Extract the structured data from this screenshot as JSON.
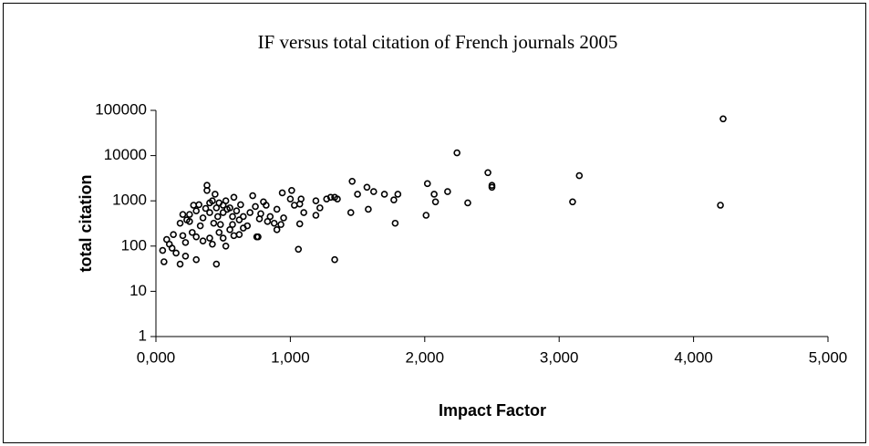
{
  "chart_data": {
    "type": "scatter",
    "title": "IF versus total citation of French journals 2005",
    "x_label": "Impact Factor",
    "y_label": "total citation",
    "y_log": true,
    "grid": false,
    "color": "#000000",
    "xlim": [
      0,
      5
    ],
    "xticks": [
      {
        "value": 0,
        "label": "0,000"
      },
      {
        "value": 1,
        "label": "1,000"
      },
      {
        "value": 2,
        "label": "2,000"
      },
      {
        "value": 3,
        "label": "3,000"
      },
      {
        "value": 4,
        "label": "4,000"
      },
      {
        "value": 5,
        "label": "5,000"
      }
    ],
    "ylim": [
      1,
      100000
    ],
    "yticks": [
      1,
      10,
      100,
      1000,
      10000,
      100000
    ],
    "x": [
      4.22,
      2.24,
      4.2,
      3.1,
      3.15,
      2.47,
      2.5,
      2.5,
      2.32,
      2.17,
      2.07,
      2.08,
      2.02,
      2.01,
      1.8,
      1.77,
      1.78,
      1.7,
      1.62,
      1.57,
      1.58,
      1.5,
      1.46,
      1.45,
      1.35,
      1.33,
      1.3,
      1.27,
      1.33,
      1.22,
      1.19,
      1.19,
      1.1,
      1.08,
      1.07,
      1.06,
      1.07,
      1.03,
      1.01,
      1.0,
      0.95,
      0.94,
      0.93,
      0.9,
      0.9,
      0.88,
      0.85,
      0.83,
      0.82,
      0.8,
      0.78,
      0.77,
      0.76,
      0.75,
      0.74,
      0.72,
      0.7,
      0.68,
      0.05,
      0.06,
      0.08,
      0.1,
      0.12,
      0.13,
      0.15,
      0.18,
      0.18,
      0.2,
      0.2,
      0.22,
      0.22,
      0.23,
      0.25,
      0.25,
      0.27,
      0.28,
      0.3,
      0.3,
      0.32,
      0.33,
      0.35,
      0.37,
      0.38,
      0.38,
      0.4,
      0.4,
      0.4,
      0.42,
      0.42,
      0.43,
      0.44,
      0.45,
      0.45,
      0.46,
      0.47,
      0.48,
      0.5,
      0.5,
      0.5,
      0.52,
      0.52,
      0.53,
      0.55,
      0.55,
      0.57,
      0.58,
      0.58,
      0.6,
      0.62,
      0.63,
      0.65,
      0.65,
      0.3,
      0.35,
      0.47,
      0.57,
      0.62
    ],
    "y": [
      65000,
      11500,
      800,
      950,
      3600,
      4200,
      2200,
      2000,
      900,
      1600,
      1400,
      950,
      2400,
      480,
      1400,
      1050,
      320,
      1400,
      1600,
      2000,
      650,
      1400,
      2700,
      550,
      1100,
      1200,
      1200,
      1100,
      50,
      700,
      1000,
      480,
      550,
      1100,
      850,
      85,
      310,
      800,
      1700,
      1100,
      420,
      1500,
      300,
      650,
      230,
      320,
      450,
      350,
      800,
      950,
      520,
      400,
      160,
      160,
      750,
      1300,
      550,
      280,
      80,
      45,
      140,
      110,
      90,
      180,
      70,
      40,
      320,
      170,
      500,
      60,
      120,
      380,
      350,
      500,
      200,
      800,
      160,
      50,
      820,
      280,
      420,
      680,
      1700,
      2200,
      900,
      550,
      150,
      110,
      1000,
      320,
      1400,
      40,
      700,
      450,
      200,
      300,
      800,
      550,
      150,
      1000,
      100,
      650,
      700,
      230,
      450,
      1200,
      170,
      600,
      380,
      820,
      450,
      250,
      600,
      130,
      900,
      300,
      180
    ]
  }
}
